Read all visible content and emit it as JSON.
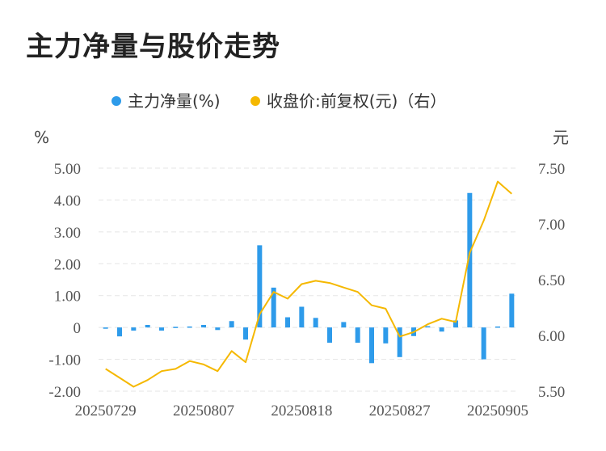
{
  "title": "主力净量与股价走势",
  "legend": {
    "bar_label": "主力净量(%)",
    "line_label": "收盘价:前复权(元)（右）"
  },
  "axis": {
    "left_unit": "%",
    "right_unit": "元"
  },
  "colors": {
    "bar": "#2E9BEA",
    "line": "#F5B800",
    "grid": "#E5E5E5"
  },
  "chart_data": {
    "type": "bar+line",
    "title": "主力净量与股价走势",
    "x_tick_labels": [
      "20250729",
      "20250807",
      "20250818",
      "20250827",
      "20250905"
    ],
    "left_axis": {
      "label": "%",
      "ylim": [
        -2.0,
        5.0
      ],
      "ticks": [
        "5.00",
        "4.00",
        "3.00",
        "2.00",
        "1.00",
        "0",
        "-1.00",
        "-2.00"
      ]
    },
    "right_axis": {
      "label": "元",
      "ylim": [
        5.5,
        7.5
      ],
      "ticks": [
        "7.50",
        "7.00",
        "6.50",
        "6.00",
        "5.50"
      ]
    },
    "series": [
      {
        "name": "主力净量(%)",
        "type": "bar",
        "axis": "left",
        "values": [
          -0.04,
          -0.28,
          -0.1,
          0.08,
          -0.1,
          0.02,
          0.03,
          0.08,
          -0.08,
          0.2,
          -0.38,
          2.58,
          1.25,
          0.32,
          0.65,
          0.3,
          -0.48,
          0.17,
          -0.48,
          -1.12,
          -0.5,
          -0.93,
          -0.27,
          0.04,
          -0.13,
          0.22,
          4.22,
          -1.0,
          0.03,
          1.06
        ]
      },
      {
        "name": "收盘价:前复权(元)（右）",
        "type": "line",
        "axis": "right",
        "values": [
          5.7,
          5.62,
          5.54,
          5.6,
          5.68,
          5.7,
          5.77,
          5.74,
          5.68,
          5.86,
          5.76,
          6.19,
          6.39,
          6.33,
          6.46,
          6.49,
          6.47,
          6.43,
          6.39,
          6.27,
          6.24,
          5.99,
          6.03,
          6.1,
          6.15,
          6.12,
          6.74,
          7.03,
          7.38,
          7.27
        ]
      }
    ],
    "grid": true,
    "legend_position": "top-center"
  }
}
